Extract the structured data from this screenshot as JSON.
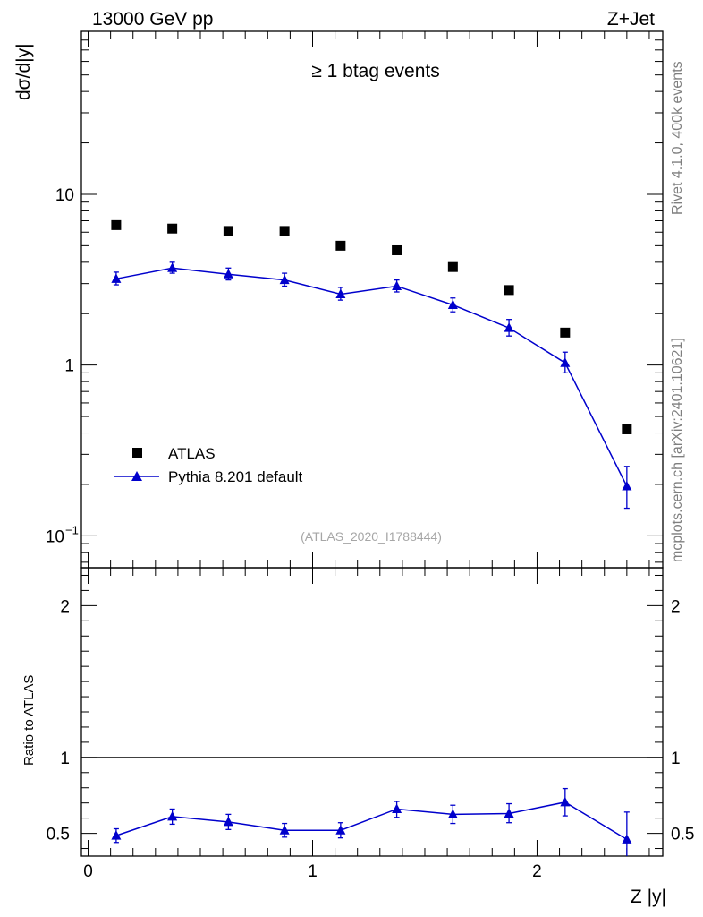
{
  "header": {
    "left": "13000 GeV pp",
    "right": "Z+Jet"
  },
  "side_text": {
    "upper": "Rivet 4.1.0,  400k events",
    "lower": "mcplots.cern.ch [arXiv:2401.10621]"
  },
  "chart_data": [
    {
      "type": "scatter",
      "title": "≥ 1 btag events",
      "watermark": "(ATLAS_2020_I1788444)",
      "xlabel": "Z |y|",
      "ylabel": "dσ/d|y|",
      "yscale": "log",
      "xlim": [
        -0.03,
        2.56
      ],
      "ylim": [
        0.065,
        90
      ],
      "yticks": [
        {
          "value": 0.1,
          "label": "10",
          "exp": "−1"
        },
        {
          "value": 1,
          "label": "1",
          "exp": ""
        },
        {
          "value": 10,
          "label": "10",
          "exp": ""
        }
      ],
      "legend": {
        "position": "lower-left",
        "entries": [
          "ATLAS",
          "Pythia 8.201 default"
        ]
      },
      "x": [
        0.125,
        0.375,
        0.625,
        0.875,
        1.125,
        1.375,
        1.625,
        1.875,
        2.125,
        2.4
      ],
      "series": [
        {
          "name": "ATLAS",
          "marker": "square",
          "color": "#000000",
          "values": [
            6.6,
            6.3,
            6.1,
            6.1,
            5.0,
            4.7,
            3.75,
            2.75,
            1.55,
            0.42
          ]
        },
        {
          "name": "Pythia 8.201 default",
          "marker": "triangle",
          "line": true,
          "color": "#0000cc",
          "values": [
            3.2,
            3.7,
            3.4,
            3.15,
            2.6,
            2.9,
            2.25,
            1.65,
            1.03,
            0.195
          ],
          "err_low": [
            0.25,
            0.25,
            0.25,
            0.25,
            0.2,
            0.22,
            0.2,
            0.17,
            0.13,
            0.05
          ],
          "err_high": [
            0.3,
            0.3,
            0.3,
            0.3,
            0.25,
            0.25,
            0.22,
            0.2,
            0.16,
            0.06
          ]
        }
      ]
    },
    {
      "type": "scatter",
      "ylabel": "Ratio to ATLAS",
      "xlabel": "Z |y|",
      "xlim": [
        -0.03,
        2.56
      ],
      "ylim": [
        0.35,
        2.25
      ],
      "yticks": [
        0.5,
        1,
        2
      ],
      "xticks": [
        0,
        1,
        2
      ],
      "reference_line": 1,
      "x": [
        0.125,
        0.375,
        0.625,
        0.875,
        1.125,
        1.375,
        1.625,
        1.875,
        2.125,
        2.4
      ],
      "series": [
        {
          "name": "Pythia 8.201 default",
          "color": "#0000cc",
          "values": [
            0.485,
            0.61,
            0.575,
            0.52,
            0.52,
            0.66,
            0.625,
            0.63,
            0.705,
            0.46
          ],
          "err_low": [
            0.045,
            0.05,
            0.05,
            0.045,
            0.05,
            0.055,
            0.06,
            0.06,
            0.09,
            0.15
          ],
          "err_high": [
            0.045,
            0.05,
            0.05,
            0.045,
            0.05,
            0.05,
            0.06,
            0.065,
            0.09,
            0.18
          ]
        }
      ]
    }
  ]
}
